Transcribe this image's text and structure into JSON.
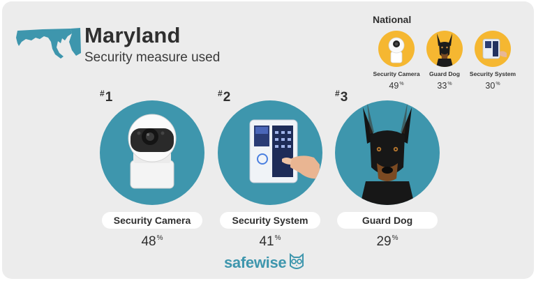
{
  "header": {
    "title": "Maryland",
    "subtitle": "Security measure used"
  },
  "national": {
    "heading": "National",
    "items": [
      {
        "label": "Security Camera",
        "value": "49",
        "icon": "security-camera-icon"
      },
      {
        "label": "Guard Dog",
        "value": "33",
        "icon": "guard-dog-icon"
      },
      {
        "label": "Security System",
        "value": "30",
        "icon": "security-system-icon"
      }
    ]
  },
  "percent_symbol": "%",
  "rank_symbol": "#",
  "ranking": [
    {
      "rank": "1",
      "label": "Security Camera",
      "value": "48",
      "icon": "security-camera-icon"
    },
    {
      "rank": "2",
      "label": "Security System",
      "value": "41",
      "icon": "security-system-icon"
    },
    {
      "rank": "3",
      "label": "Guard Dog",
      "value": "29",
      "icon": "guard-dog-icon"
    }
  ],
  "brand": {
    "name": "safewise",
    "logo_icon": "owl-icon"
  },
  "colors": {
    "background": "#ececec",
    "circle_main": "#3e96ad",
    "circle_national": "#f5b731",
    "state_map": "#3e96ad",
    "brand": "#3e96ad"
  }
}
